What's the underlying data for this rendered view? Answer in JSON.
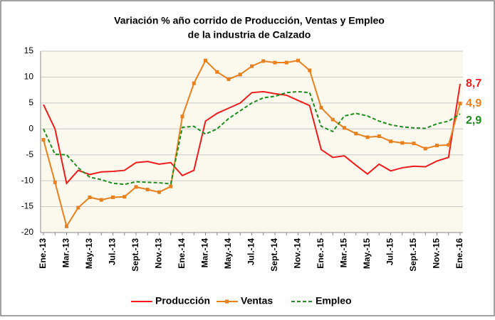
{
  "chart_data": {
    "type": "line",
    "title": [
      "Variación % año corrido de Producción, Ventas y Empleo",
      "de la industria de Calzado"
    ],
    "categories": [
      "Ene.-13",
      null,
      "Mar.-13",
      null,
      "May.-13",
      null,
      "Jul.-13",
      null,
      "Sept.-13",
      null,
      "Nov.-13",
      null,
      "Ene.-14",
      null,
      "Mar.-14",
      null,
      "May.-14",
      null,
      "Jul.-14",
      null,
      "Sept.-14",
      null,
      "Nov.-14",
      null,
      "Ene.-15",
      null,
      "Mar.-15",
      null,
      "May.-15",
      null,
      "Jul.-15",
      null,
      "Sept.-15",
      null,
      "Nov.-15",
      null,
      "Ene.-16"
    ],
    "series": [
      {
        "name": "Producción",
        "color": "#ee1c1c",
        "dash": false,
        "markers": false,
        "values": [
          4.7,
          0,
          -10.5,
          -8,
          -8.8,
          -8.3,
          -8.2,
          -8,
          -6.5,
          -6.3,
          -6.8,
          -6.5,
          -9,
          -8,
          1.5,
          3,
          4,
          5,
          7,
          7.2,
          6.8,
          6.5,
          5.5,
          4.5,
          -4,
          -5.5,
          -5.2,
          -7,
          -8.7,
          -6.8,
          -8.1,
          -7.5,
          -7.2,
          -7.3,
          -6.2,
          -5.5,
          8.7
        ],
        "value_labels": [
          null,
          null,
          null,
          null,
          null,
          null,
          null,
          null,
          null,
          null,
          null,
          null,
          null,
          null,
          null,
          null,
          null,
          null,
          null,
          null,
          null,
          null,
          null,
          null,
          null,
          null,
          null,
          null,
          null,
          null,
          null,
          null,
          null,
          null,
          null,
          null,
          "8,7"
        ]
      },
      {
        "name": "Ventas",
        "color": "#e8801e",
        "dash": false,
        "markers": true,
        "values": [
          -2.1,
          -10.3,
          -18.8,
          -15.2,
          -13.2,
          -13.7,
          -13.2,
          -13.1,
          -11.2,
          -11.7,
          -12.2,
          -11.1,
          2.4,
          8.8,
          13.2,
          11,
          9.6,
          10.5,
          12.1,
          13.1,
          12.8,
          12.8,
          13.2,
          11.3,
          4.1,
          1.8,
          0.2,
          -0.9,
          -1.6,
          -1.4,
          -2.4,
          -2.7,
          -2.8,
          -3.8,
          -3.2,
          -3.1,
          4.9
        ],
        "value_labels": [
          null,
          null,
          null,
          null,
          null,
          null,
          null,
          null,
          null,
          null,
          null,
          null,
          null,
          null,
          null,
          null,
          null,
          null,
          null,
          null,
          null,
          null,
          null,
          null,
          null,
          null,
          null,
          null,
          null,
          null,
          null,
          null,
          null,
          null,
          null,
          null,
          "4,9"
        ]
      },
      {
        "name": "Empleo",
        "color": "#1e8c1e",
        "dash": true,
        "markers": false,
        "values": [
          0,
          -4.9,
          -5,
          -7.5,
          -9.3,
          -9.8,
          -10.5,
          -10.7,
          -10.2,
          -10.3,
          -10.4,
          -10.6,
          0.3,
          0.5,
          -1,
          0,
          2,
          3.5,
          5,
          6,
          6.3,
          7,
          7.2,
          7,
          0.5,
          -0.5,
          2.5,
          3,
          2.5,
          1.5,
          0.8,
          0.4,
          0.2,
          0.1,
          1,
          1.5,
          2.9
        ],
        "value_labels": [
          null,
          null,
          null,
          null,
          null,
          null,
          null,
          null,
          null,
          null,
          null,
          null,
          null,
          null,
          null,
          null,
          null,
          null,
          null,
          null,
          null,
          null,
          null,
          null,
          null,
          null,
          null,
          null,
          null,
          null,
          null,
          null,
          null,
          null,
          null,
          null,
          "2,9"
        ]
      }
    ],
    "ylim": [
      -20,
      15
    ],
    "yticks": [
      -20,
      -15,
      -10,
      -5,
      0,
      5,
      10,
      15
    ],
    "grid": true,
    "legend": "bottom"
  }
}
